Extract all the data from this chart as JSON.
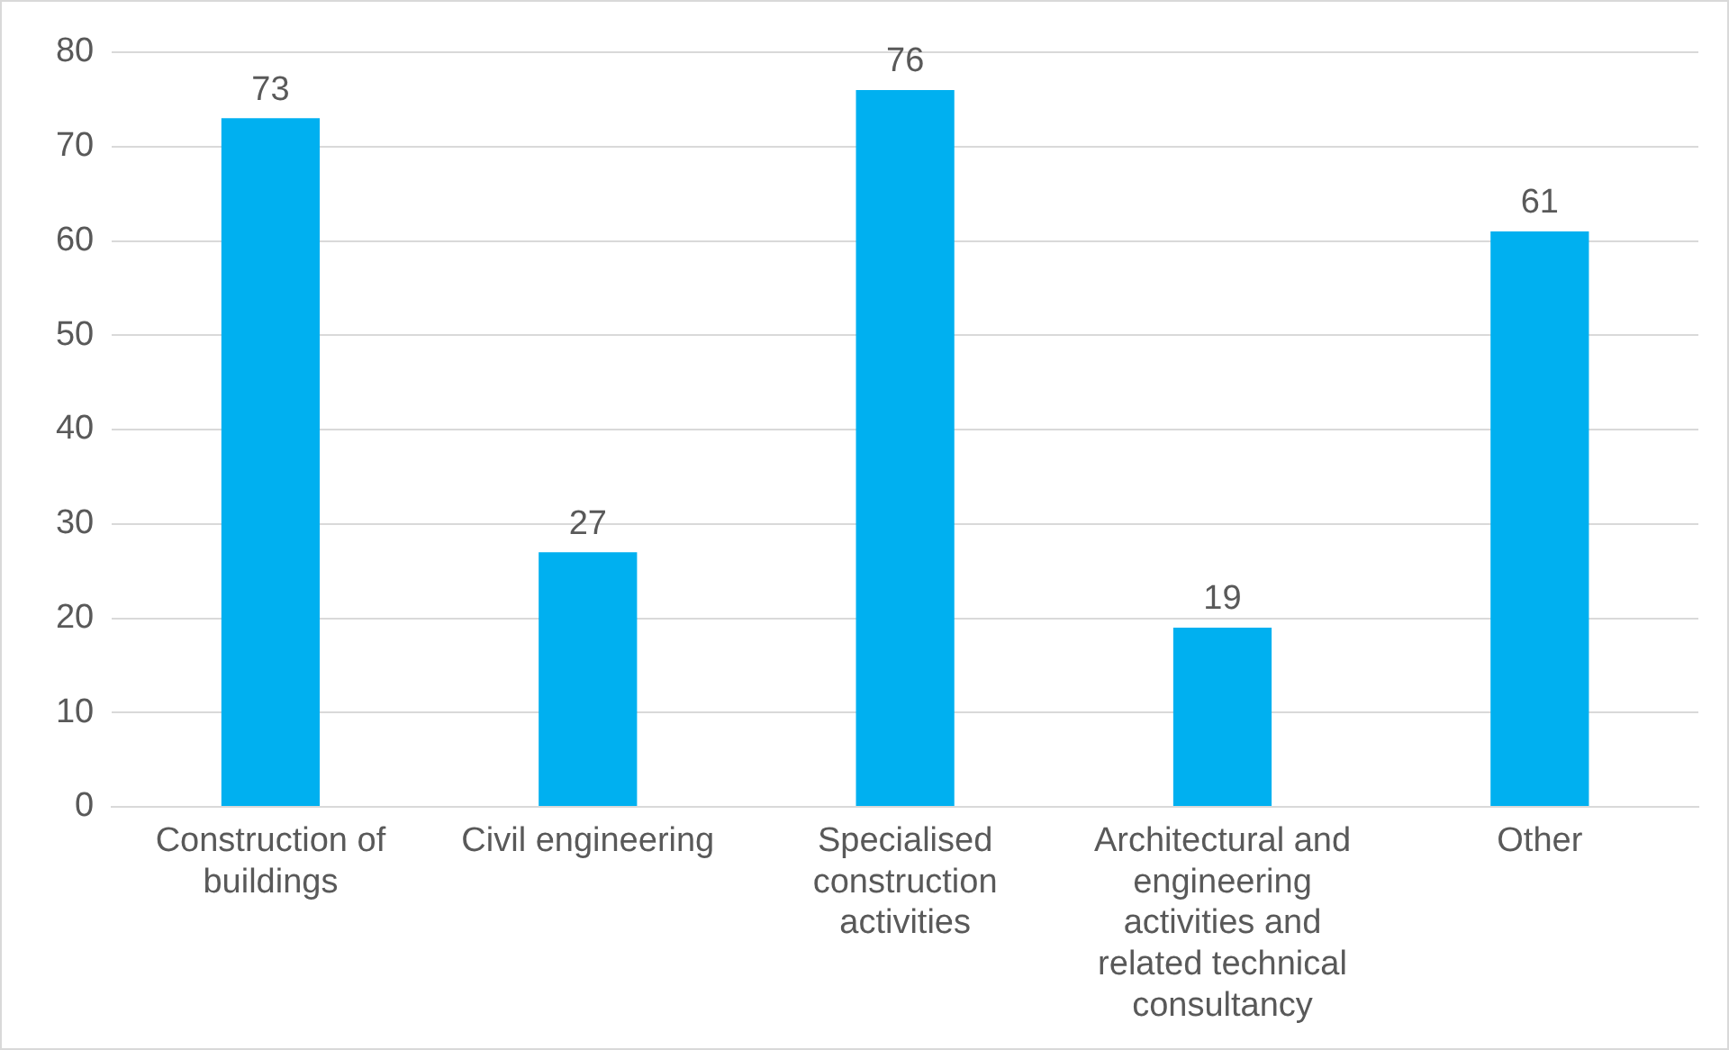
{
  "chart_data": {
    "type": "bar",
    "categories": [
      "Construction of buildings",
      "Civil engineering",
      "Specialised construction activities",
      "Architectural and engineering activities and related technical consultancy",
      "Other"
    ],
    "values": [
      73,
      27,
      76,
      19,
      61
    ],
    "color": "#00b0f0",
    "ylim": [
      0,
      80
    ],
    "yticks": [
      0,
      10,
      20,
      30,
      40,
      50,
      60,
      70,
      80
    ],
    "grid": "y",
    "legend": false,
    "data_labels": true
  }
}
